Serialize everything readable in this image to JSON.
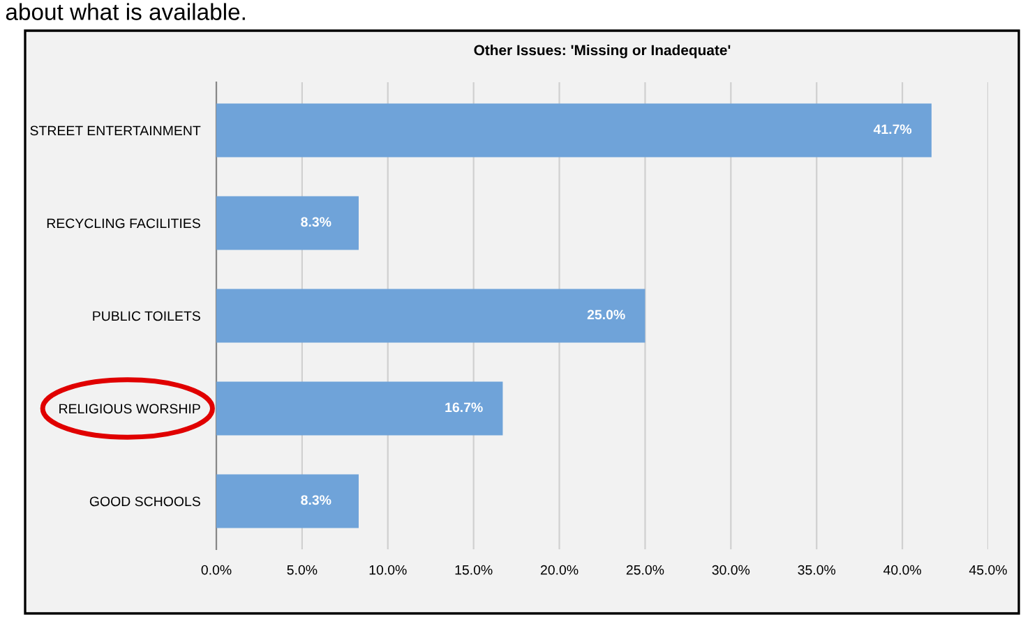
{
  "chart_data": {
    "type": "bar",
    "orientation": "horizontal",
    "title": "Other Issues: 'Missing or Inadequate'",
    "categories": [
      "STREET ENTERTAINMENT",
      "RECYCLING FACILITIES",
      "PUBLIC TOILETS",
      "RELIGIOUS WORSHIP",
      "GOOD SCHOOLS"
    ],
    "values": [
      41.7,
      8.3,
      25.0,
      16.7,
      8.3
    ],
    "value_labels": [
      "41.7%",
      "8.3%",
      "25.0%",
      "16.7%",
      "8.3%"
    ],
    "color": "#6fa3d9",
    "xlim": [
      0,
      45
    ],
    "xticks": [
      {
        "value": 0,
        "label": "0.0%"
      },
      {
        "value": 5,
        "label": "5.0%"
      },
      {
        "value": 10,
        "label": "10.0%"
      },
      {
        "value": 15,
        "label": "15.0%"
      },
      {
        "value": 20,
        "label": "20.0%"
      },
      {
        "value": 25,
        "label": "25.0%"
      },
      {
        "value": 30,
        "label": "30.0%"
      },
      {
        "value": 35,
        "label": "35.0%"
      },
      {
        "value": 40,
        "label": "40.0%"
      },
      {
        "value": 45,
        "label": "45.0%"
      }
    ],
    "grid": "x",
    "annotations": [
      "about what is available."
    ]
  }
}
